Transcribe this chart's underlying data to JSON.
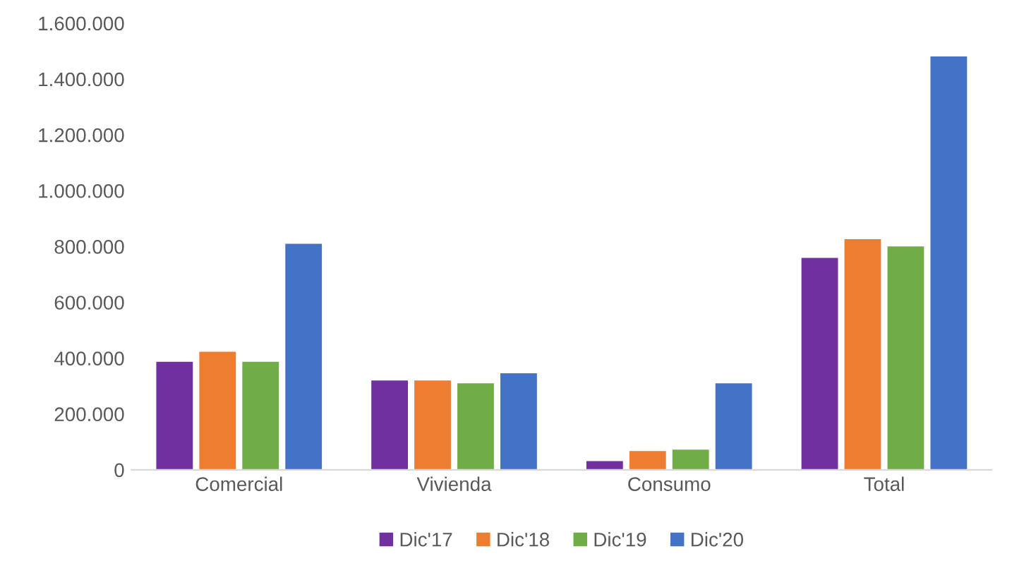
{
  "chart_data": {
    "type": "bar",
    "categories": [
      "Comercial",
      "Vivienda",
      "Consumo",
      "Total"
    ],
    "series": [
      {
        "name": "Dic'17",
        "color": "#7030a0",
        "values": [
          387000,
          320000,
          31000,
          759000
        ]
      },
      {
        "name": "Dic'18",
        "color": "#ed7d31",
        "values": [
          423000,
          320000,
          67000,
          826000
        ]
      },
      {
        "name": "Dic'19",
        "color": "#70ad47",
        "values": [
          387000,
          310000,
          72000,
          800000
        ]
      },
      {
        "name": "Dic'20",
        "color": "#4472c4",
        "values": [
          810000,
          346000,
          310000,
          1481000
        ]
      }
    ],
    "ylim": [
      0,
      1600000
    ],
    "yticks": [
      {
        "value": 0,
        "label": "0"
      },
      {
        "value": 200000,
        "label": "200.000"
      },
      {
        "value": 400000,
        "label": "400.000"
      },
      {
        "value": 600000,
        "label": "600.000"
      },
      {
        "value": 800000,
        "label": "800.000"
      },
      {
        "value": 1000000,
        "label": "1.000.000"
      },
      {
        "value": 1200000,
        "label": "1.200.000"
      },
      {
        "value": 1400000,
        "label": "1.400.000"
      },
      {
        "value": 1600000,
        "label": "1.600.000"
      }
    ],
    "grid": false,
    "legend": "bottom"
  }
}
